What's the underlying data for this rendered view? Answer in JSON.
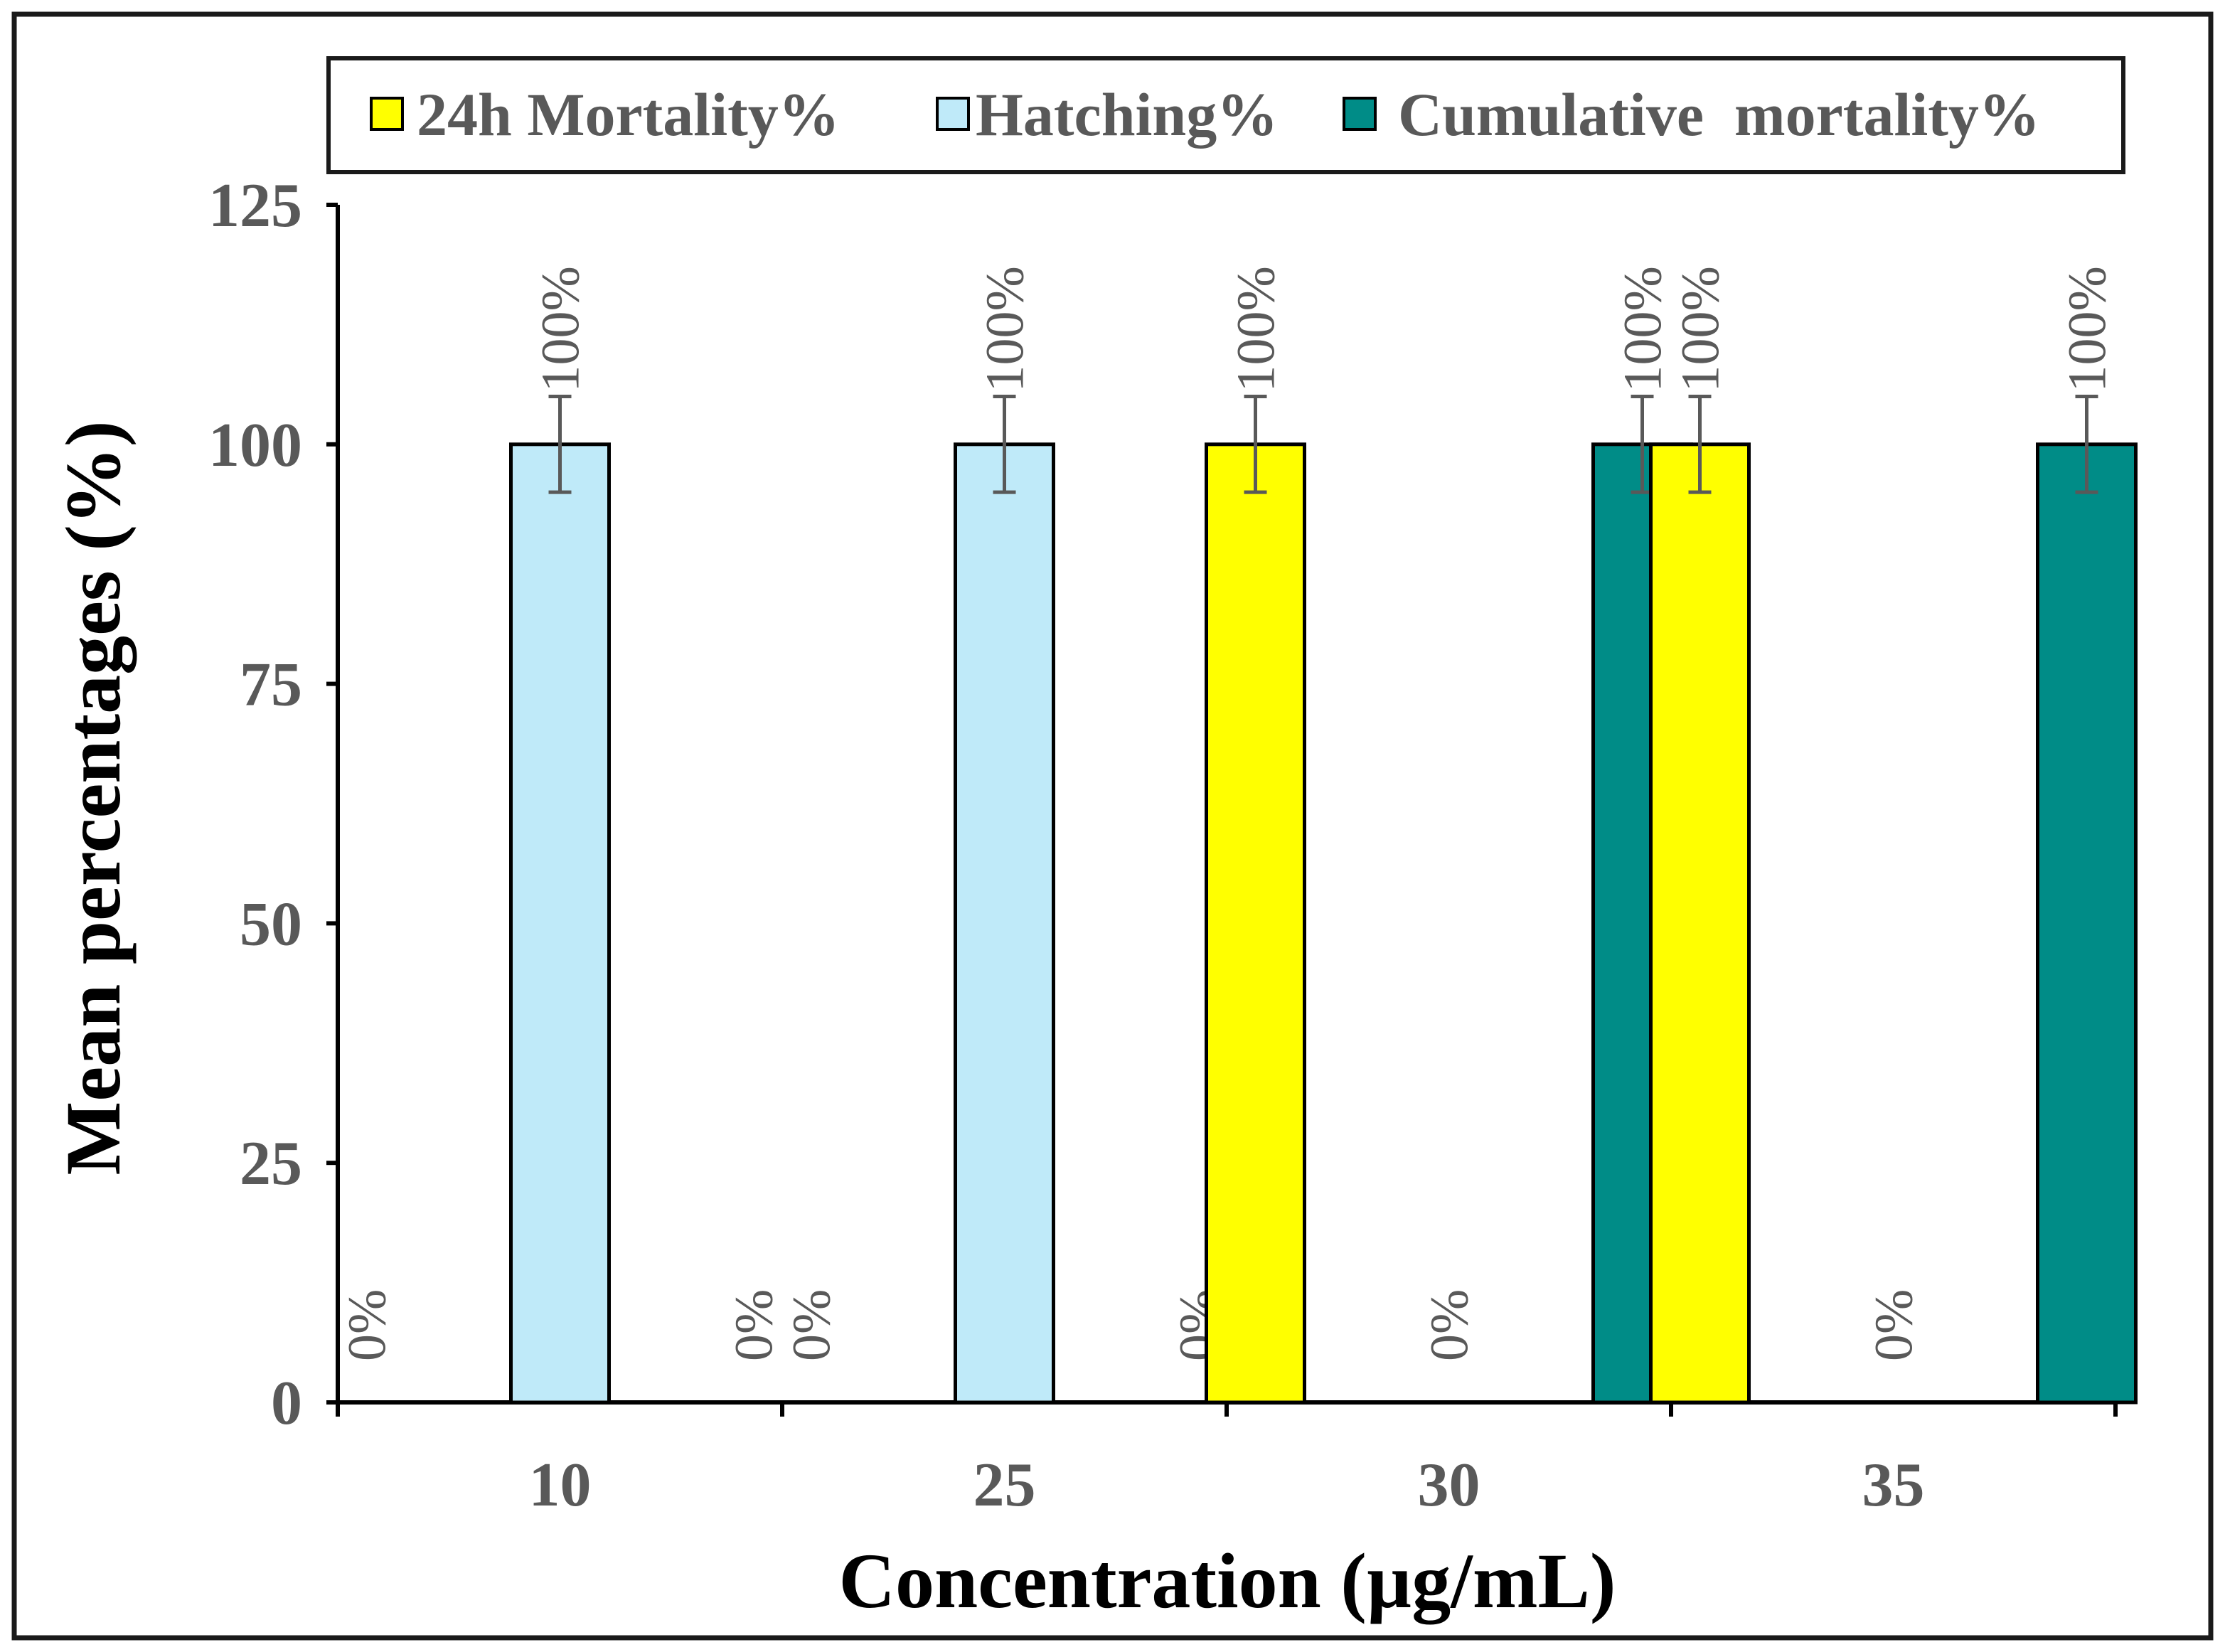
{
  "chart_data": {
    "type": "bar",
    "xlabel": "Concentration (µg/mL)",
    "ylabel": "Mean percentages (%)",
    "ylim": [
      0,
      125
    ],
    "yticks": [
      0,
      25,
      50,
      75,
      100,
      125
    ],
    "categories": [
      "10",
      "25",
      "30",
      "35"
    ],
    "series": [
      {
        "name": "24h Mortality%",
        "color": "#ffff00",
        "values": [
          0,
          0,
          100,
          100
        ],
        "labels": [
          "0%",
          "0%",
          "100%",
          "100%"
        ],
        "error": [
          0,
          0,
          5,
          5
        ]
      },
      {
        "name": "Hatching%",
        "color": "#bfeaf9",
        "values": [
          100,
          100,
          0,
          0
        ],
        "labels": [
          "100%",
          "100%",
          "0%",
          "0%"
        ],
        "error": [
          5,
          5,
          0,
          0
        ]
      },
      {
        "name": "Cumulative  mortality%",
        "color": "#008c87",
        "values": [
          0,
          0,
          100,
          100
        ],
        "labels": [
          "0%",
          "0%",
          "100%",
          "100%"
        ],
        "error": [
          0,
          0,
          5,
          5
        ]
      }
    ],
    "legend_position": "top"
  }
}
